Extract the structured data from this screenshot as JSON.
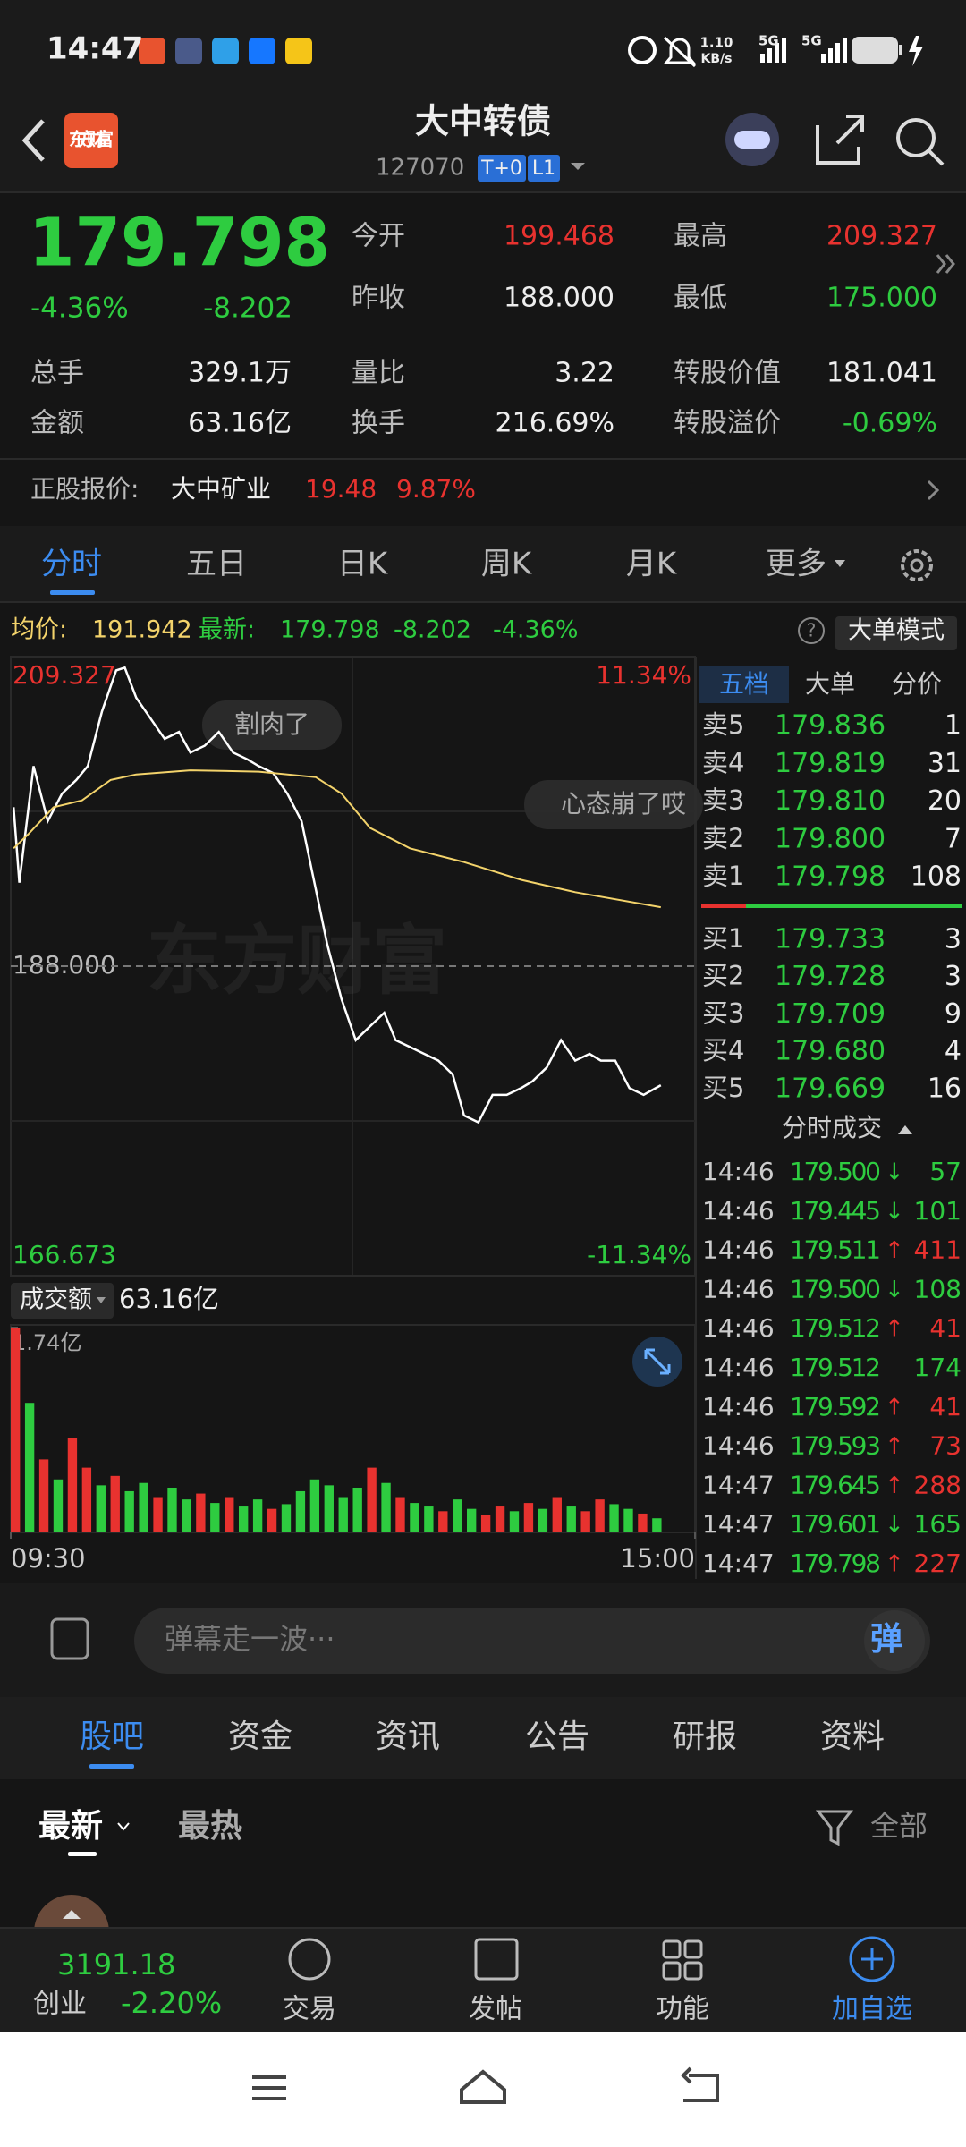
{
  "status_bar": {
    "time": "14:47",
    "speed": "1.10",
    "speed_unit": "KB/s",
    "net1": "5G",
    "net2": "5G"
  },
  "header": {
    "logo": "东方财富",
    "title": "大中转债",
    "code": "127070",
    "badges": [
      "T+0",
      "L1"
    ]
  },
  "quote": {
    "price": "179.798",
    "change_pct": "-4.36%",
    "change": "-8.202",
    "stats_top": [
      {
        "label": "今开",
        "value": "199.468",
        "color": "#e8322f"
      },
      {
        "label": "最高",
        "value": "209.327",
        "color": "#e8322f"
      },
      {
        "label": "昨收",
        "value": "188.000",
        "color": "#eeeeee"
      },
      {
        "label": "最低",
        "value": "175.000",
        "color": "#2ecc40"
      }
    ],
    "stats_bottom": [
      {
        "label": "总手",
        "value": "329.1万",
        "color": "#eeeeee"
      },
      {
        "label": "量比",
        "value": "3.22",
        "color": "#eeeeee"
      },
      {
        "label": "转股价值",
        "value": "181.041",
        "color": "#eeeeee"
      },
      {
        "label": "金额",
        "value": "63.16亿",
        "color": "#eeeeee"
      },
      {
        "label": "换手",
        "value": "216.69%",
        "color": "#eeeeee"
      },
      {
        "label": "转股溢价",
        "value": "-0.69%",
        "color": "#2ecc40"
      }
    ]
  },
  "stock": {
    "label": "正股报价:",
    "name": "大中矿业",
    "price": "19.48",
    "pct": "9.87%"
  },
  "tabs": [
    "分时",
    "五日",
    "日K",
    "周K",
    "月K",
    "更多"
  ],
  "info_bar": {
    "avg_label": "均价:",
    "avg": "191.942",
    "last_label": "最新:",
    "last": "179.798",
    "change": "-8.202",
    "pct": "-4.36%",
    "mode": "大单模式"
  },
  "danmaku": [
    "割肉了",
    "心态崩了哎"
  ],
  "watermark": "东方财富",
  "volume_header": {
    "label": "成交额",
    "total": "63.16亿"
  },
  "chart_data": [
    {
      "type": "line",
      "xlim": [
        0,
        240
      ],
      "xticks": [
        {
          "value": 0,
          "label": "09:30"
        },
        {
          "value": 240,
          "label": "15:00"
        }
      ],
      "ylim": [
        166.673,
        209.327
      ],
      "yticks": [
        209.327,
        {
          "value": 188,
          "label": "188.000"
        },
        166.673
      ],
      "y2lim": [
        -11.34,
        11.34
      ],
      "y2ticks": [
        {
          "value": 11.34,
          "label": "11.34%"
        },
        {
          "value": -11.34,
          "label": "-11.34%"
        }
      ],
      "series": [
        {
          "color": "#ffffff",
          "x": [
            1,
            3,
            8,
            13,
            18,
            23,
            27,
            32,
            37,
            40,
            44,
            49,
            54,
            59,
            63,
            68,
            73,
            78,
            83,
            87,
            92,
            97,
            102,
            107,
            111,
            116,
            121,
            126,
            131,
            135,
            140,
            145,
            150,
            155,
            159,
            164,
            169,
            174,
            179,
            183,
            188,
            193,
            198,
            203,
            207,
            212,
            217,
            222,
            228
          ],
          "values": [
            198.95,
            193.75,
            201.78,
            198.0,
            199.89,
            200.83,
            201.78,
            205.55,
            208.38,
            208.57,
            206.5,
            205.08,
            203.66,
            204.14,
            202.72,
            203.19,
            204.14,
            202.72,
            202.25,
            201.78,
            201.31,
            199.89,
            198.0,
            193.28,
            189.51,
            185.73,
            182.9,
            183.85,
            184.79,
            182.9,
            182.43,
            181.96,
            181.49,
            180.54,
            177.71,
            177.24,
            179.13,
            179.13,
            179.6,
            180.07,
            181.02,
            182.9,
            181.49,
            181.96,
            181.49,
            181.49,
            179.6,
            179.13,
            179.798
          ]
        },
        {
          "color": "#f3d36b",
          "x": [
            1,
            6,
            15,
            25,
            35,
            44,
            63,
            87,
            107,
            116,
            126,
            140,
            159,
            179,
            198,
            228
          ],
          "values": [
            196.12,
            197.06,
            198.95,
            199.42,
            200.83,
            201.21,
            201.49,
            201.4,
            201.02,
            199.89,
            197.53,
            196.12,
            195.17,
            193.95,
            193.1,
            192.06
          ]
        }
      ]
    },
    {
      "type": "bar",
      "xlim": [
        0,
        240
      ],
      "ylim": [
        0,
        1.74
      ],
      "yticks": [
        {
          "value": 1.74,
          "label": "1.74亿"
        }
      ],
      "x": [
        0,
        5,
        10,
        15,
        20,
        25,
        30,
        35,
        40,
        45,
        50,
        55,
        60,
        65,
        70,
        75,
        80,
        85,
        90,
        95,
        100,
        105,
        110,
        115,
        120,
        125,
        130,
        135,
        140,
        145,
        150,
        155,
        160,
        165,
        170,
        175,
        180,
        185,
        190,
        195,
        200,
        205,
        210,
        215,
        220,
        225
      ],
      "values": [
        1.74,
        1.1,
        0.62,
        0.45,
        0.8,
        0.55,
        0.4,
        0.48,
        0.35,
        0.42,
        0.3,
        0.38,
        0.28,
        0.33,
        0.25,
        0.3,
        0.22,
        0.28,
        0.2,
        0.24,
        0.35,
        0.45,
        0.4,
        0.3,
        0.38,
        0.55,
        0.42,
        0.3,
        0.25,
        0.22,
        0.18,
        0.28,
        0.2,
        0.15,
        0.22,
        0.18,
        0.25,
        0.2,
        0.3,
        0.22,
        0.18,
        0.28,
        0.24,
        0.2,
        0.16,
        0.12
      ],
      "colors": [
        "#e8322f",
        "#2ecc40",
        "#e8322f",
        "#2ecc40",
        "#e8322f",
        "#e8322f",
        "#2ecc40",
        "#e8322f",
        "#2ecc40",
        "#2ecc40",
        "#e8322f",
        "#2ecc40",
        "#2ecc40",
        "#e8322f",
        "#2ecc40",
        "#e8322f",
        "#2ecc40",
        "#2ecc40",
        "#e8322f",
        "#2ecc40",
        "#2ecc40",
        "#2ecc40",
        "#2ecc40",
        "#2ecc40",
        "#2ecc40",
        "#e8322f",
        "#2ecc40",
        "#e8322f",
        "#2ecc40",
        "#2ecc40",
        "#e8322f",
        "#2ecc40",
        "#2ecc40",
        "#e8322f",
        "#e8322f",
        "#2ecc40",
        "#e8322f",
        "#2ecc40",
        "#e8322f",
        "#2ecc40",
        "#e8322f",
        "#e8322f",
        "#2ecc40",
        "#2ecc40",
        "#e8322f",
        "#2ecc40"
      ]
    }
  ],
  "order_book": {
    "tabs": [
      "五档",
      "大单",
      "分价"
    ],
    "asks": [
      {
        "label": "卖5",
        "price": "179.836",
        "volume": "1"
      },
      {
        "label": "卖4",
        "price": "179.819",
        "volume": "31"
      },
      {
        "label": "卖3",
        "price": "179.810",
        "volume": "20"
      },
      {
        "label": "卖2",
        "price": "179.800",
        "volume": "7"
      },
      {
        "label": "卖1",
        "price": "179.798",
        "volume": "108"
      }
    ],
    "bids": [
      {
        "label": "买1",
        "price": "179.733",
        "volume": "3"
      },
      {
        "label": "买2",
        "price": "179.728",
        "volume": "3"
      },
      {
        "label": "买3",
        "price": "179.709",
        "volume": "9"
      },
      {
        "label": "买4",
        "price": "179.680",
        "volume": "4"
      },
      {
        "label": "买5",
        "price": "179.669",
        "volume": "16"
      }
    ]
  },
  "trades": {
    "title": "分时成交",
    "rows": [
      {
        "time": "14:46",
        "price": "179.500",
        "arrow": "↓",
        "volume": "57"
      },
      {
        "time": "14:46",
        "price": "179.445",
        "arrow": "↓",
        "volume": "101"
      },
      {
        "time": "14:46",
        "price": "179.511",
        "arrow": "↑",
        "volume": "411"
      },
      {
        "time": "14:46",
        "price": "179.500",
        "arrow": "↓",
        "volume": "108"
      },
      {
        "time": "14:46",
        "price": "179.512",
        "arrow": "↑",
        "volume": "41"
      },
      {
        "time": "14:46",
        "price": "179.512",
        "volume": "174"
      },
      {
        "time": "14:46",
        "price": "179.592",
        "arrow": "↑",
        "volume": "41"
      },
      {
        "time": "14:46",
        "price": "179.593",
        "arrow": "↑",
        "volume": "73"
      },
      {
        "time": "14:47",
        "price": "179.645",
        "arrow": "↑",
        "volume": "288"
      },
      {
        "time": "14:47",
        "price": "179.601",
        "arrow": "↓",
        "volume": "165"
      },
      {
        "time": "14:47",
        "price": "179.798",
        "arrow": "↑",
        "volume": "227"
      }
    ]
  },
  "comment_bar": {
    "placeholder": "弹幕走一波···",
    "button": "弹"
  },
  "section_tabs": [
    "股吧",
    "资金",
    "资讯",
    "公告",
    "研报",
    "资料"
  ],
  "feed_tabs": {
    "latest": "最新",
    "hot": "最热",
    "filter": "全部"
  },
  "bottom_nav": {
    "index_value": "3191.18",
    "index_name": "创业",
    "index_pct": "-2.20%",
    "items": [
      "交易",
      "发帖",
      "功能",
      "加自选"
    ]
  }
}
